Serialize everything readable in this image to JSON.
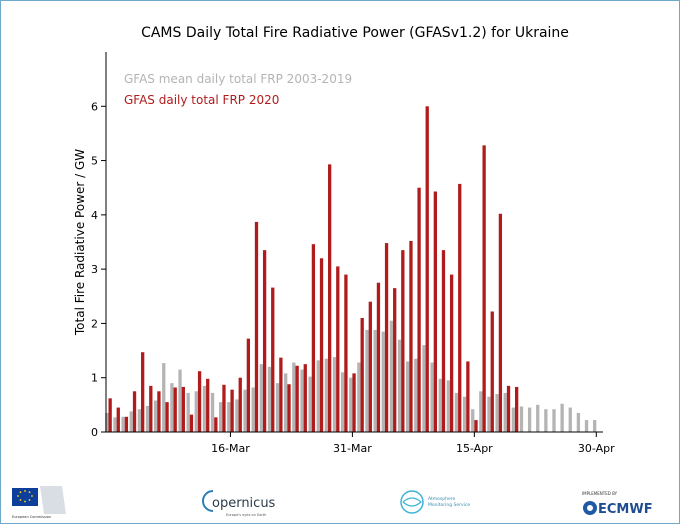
{
  "chart_data": {
    "type": "bar",
    "title": "CAMS Daily Total Fire Radiative Power (GFASv1.2) for Ukraine",
    "ylabel": "Total Fire Radiative Power / GW",
    "xlabel": "",
    "ylim": [
      0,
      7
    ],
    "yticks": [
      0,
      1,
      2,
      3,
      4,
      5,
      6
    ],
    "x_start": "1-Mar",
    "x_end": "30-Apr",
    "xtick_labels": [
      {
        "day": 16,
        "label": "16-Mar"
      },
      {
        "day": 31,
        "label": "31-Mar"
      },
      {
        "day": 46,
        "label": "15-Apr"
      },
      {
        "day": 61,
        "label": "30-Apr"
      }
    ],
    "grid": false,
    "legend_position": "top-left",
    "series": [
      {
        "name": "GFAS mean daily total FRP 2003-2019",
        "color": "#b4b4b4",
        "values": [
          0.35,
          0.27,
          0.28,
          0.38,
          0.42,
          0.48,
          0.58,
          1.27,
          0.9,
          1.15,
          0.72,
          0.75,
          0.85,
          0.72,
          0.55,
          0.55,
          0.6,
          0.78,
          0.82,
          1.25,
          1.2,
          0.9,
          1.08,
          1.28,
          1.15,
          1.02,
          1.32,
          1.35,
          1.38,
          1.1,
          1.0,
          1.28,
          1.88,
          1.88,
          1.85,
          2.05,
          1.7,
          1.3,
          1.35,
          1.6,
          1.28,
          0.98,
          0.95,
          0.72,
          0.65,
          0.42,
          0.75,
          0.65,
          0.7,
          0.72,
          0.45,
          0.47,
          0.45,
          0.5,
          0.42,
          0.42,
          0.52,
          0.45,
          0.35,
          0.22,
          0.22
        ]
      },
      {
        "name": "GFAS daily total FRP 2020",
        "color": "#b01c1c",
        "values": [
          0.62,
          0.45,
          0.28,
          0.75,
          1.47,
          0.85,
          0.75,
          0.55,
          0.82,
          0.83,
          0.32,
          1.12,
          0.98,
          0.27,
          0.87,
          0.78,
          1.0,
          1.72,
          3.87,
          3.35,
          2.66,
          1.37,
          0.88,
          1.22,
          1.25,
          3.46,
          3.2,
          4.93,
          3.05,
          2.9,
          1.08,
          2.1,
          2.4,
          2.75,
          3.48,
          2.65,
          3.35,
          3.52,
          4.5,
          6.0,
          4.43,
          3.35,
          2.9,
          4.57,
          1.3,
          0.22,
          5.28,
          2.22,
          4.02,
          0.85,
          0.83,
          null,
          null,
          null,
          null,
          null,
          null,
          null,
          null,
          null,
          null
        ]
      }
    ]
  },
  "footer": {
    "copernicus_brand": "opernicus",
    "copernicus_tagline": "Europe's eyes on Earth",
    "eu_text": "European Commission",
    "atmosphere_line1": "Atmosphere",
    "atmosphere_line2": "Monitoring Service",
    "ecmwf_implemented": "IMPLEMENTED BY",
    "ecmwf_name": "ECMWF"
  }
}
